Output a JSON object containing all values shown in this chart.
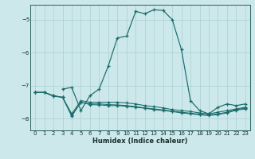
{
  "xlabel": "Humidex (Indice chaleur)",
  "background_color": "#cce8ea",
  "grid_color": "#aacfd2",
  "line_color": "#1a6b6b",
  "xlim": [
    -0.5,
    23.5
  ],
  "ylim": [
    -8.35,
    -4.55
  ],
  "yticks": [
    -8,
    -7,
    -6,
    -5
  ],
  "xticks": [
    0,
    1,
    2,
    3,
    4,
    5,
    6,
    7,
    8,
    9,
    10,
    11,
    12,
    13,
    14,
    15,
    16,
    17,
    18,
    19,
    20,
    21,
    22,
    23
  ],
  "series_main_x": [
    3,
    4,
    5,
    6,
    7,
    8,
    9,
    10,
    11,
    12,
    13,
    14,
    15,
    16,
    17,
    18,
    19,
    20,
    21,
    22,
    23
  ],
  "series_main_y": [
    -7.1,
    -7.05,
    -7.75,
    -7.3,
    -7.1,
    -6.4,
    -5.55,
    -5.5,
    -4.75,
    -4.82,
    -4.7,
    -4.72,
    -5.0,
    -5.9,
    -7.45,
    -7.75,
    -7.85,
    -7.65,
    -7.55,
    -7.6,
    -7.55
  ],
  "series2_x": [
    0,
    1,
    2,
    3,
    4,
    5,
    6,
    7,
    8,
    9,
    10,
    11,
    12,
    13,
    14,
    15,
    16,
    17,
    18,
    19,
    20,
    21,
    22,
    23
  ],
  "series2_y": [
    -7.2,
    -7.2,
    -7.3,
    -7.35,
    -7.85,
    -7.45,
    -7.5,
    -7.5,
    -7.5,
    -7.5,
    -7.52,
    -7.55,
    -7.6,
    -7.63,
    -7.67,
    -7.72,
    -7.75,
    -7.78,
    -7.82,
    -7.85,
    -7.8,
    -7.75,
    -7.7,
    -7.65
  ],
  "series3_x": [
    0,
    1,
    2,
    3,
    4,
    5,
    6,
    7,
    8,
    9,
    10,
    11,
    12,
    13,
    14,
    15,
    16,
    17,
    18,
    19,
    20,
    21,
    22,
    23
  ],
  "series3_y": [
    -7.2,
    -7.2,
    -7.3,
    -7.35,
    -7.9,
    -7.5,
    -7.55,
    -7.55,
    -7.57,
    -7.58,
    -7.6,
    -7.63,
    -7.67,
    -7.7,
    -7.73,
    -7.77,
    -7.8,
    -7.83,
    -7.86,
    -7.88,
    -7.85,
    -7.8,
    -7.72,
    -7.68
  ],
  "series4_x": [
    0,
    1,
    2,
    3,
    4,
    5,
    6,
    7,
    8,
    9,
    10,
    11,
    12,
    13,
    14,
    15,
    16,
    17,
    18,
    19,
    20,
    21,
    22,
    23
  ],
  "series4_y": [
    -7.2,
    -7.2,
    -7.32,
    -7.35,
    -7.92,
    -7.5,
    -7.57,
    -7.58,
    -7.6,
    -7.6,
    -7.62,
    -7.65,
    -7.68,
    -7.72,
    -7.75,
    -7.78,
    -7.82,
    -7.85,
    -7.88,
    -7.9,
    -7.87,
    -7.82,
    -7.74,
    -7.7
  ]
}
